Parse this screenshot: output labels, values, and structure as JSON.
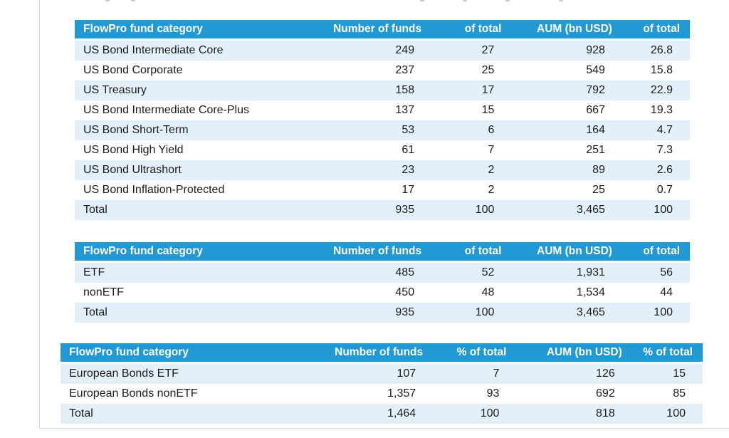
{
  "colors": {
    "header_bg": "#2199d4",
    "header_text": "#ffffff",
    "row_alt_bg": "#e3f0fa",
    "row_bg": "#ffffff",
    "body_text": "#1c1c1e",
    "page_edge_line": "#d7d7d7"
  },
  "tables": [
    {
      "name": "us-bond-fund-categories",
      "columns": [
        "FlowPro fund category",
        "Number of funds",
        "of total",
        "AUM (bn USD)",
        "of total"
      ],
      "rows": [
        [
          "US Bond Intermediate Core",
          "249",
          "27",
          "928",
          "26.8"
        ],
        [
          "US Bond Corporate",
          "237",
          "25",
          "549",
          "15.8"
        ],
        [
          "US Treasury",
          "158",
          "17",
          "792",
          "22.9"
        ],
        [
          "US Bond Intermediate Core-Plus",
          "137",
          "15",
          "667",
          "19.3"
        ],
        [
          "US Bond Short-Term",
          "53",
          "6",
          "164",
          "4.7"
        ],
        [
          "US Bond High Yield",
          "61",
          "7",
          "251",
          "7.3"
        ],
        [
          "US Bond Ultrashort",
          "23",
          "2",
          "89",
          "2.6"
        ],
        [
          "US Bond Inflation-Protected",
          "17",
          "2",
          "25",
          "0.7"
        ],
        [
          "Total",
          "935",
          "100",
          "3,465",
          "100"
        ]
      ]
    },
    {
      "name": "etf-vs-nonetf",
      "columns": [
        "FlowPro fund category",
        "Number of funds",
        "of total",
        "AUM (bn USD)",
        "of total"
      ],
      "rows": [
        [
          "ETF",
          "485",
          "52",
          "1,931",
          "56"
        ],
        [
          "nonETF",
          "450",
          "48",
          "1,534",
          "44"
        ],
        [
          "Total",
          "935",
          "100",
          "3,465",
          "100"
        ]
      ]
    },
    {
      "name": "european-bonds",
      "columns": [
        "FlowPro fund category",
        "Number of funds",
        "% of total",
        "AUM (bn USD)",
        "% of total"
      ],
      "rows": [
        [
          "European Bonds ETF",
          "107",
          "7",
          "126",
          "15"
        ],
        [
          "European Bonds nonETF",
          "1,357",
          "93",
          "692",
          "85"
        ],
        [
          "Total",
          "1,464",
          "100",
          "818",
          "100"
        ]
      ]
    }
  ]
}
